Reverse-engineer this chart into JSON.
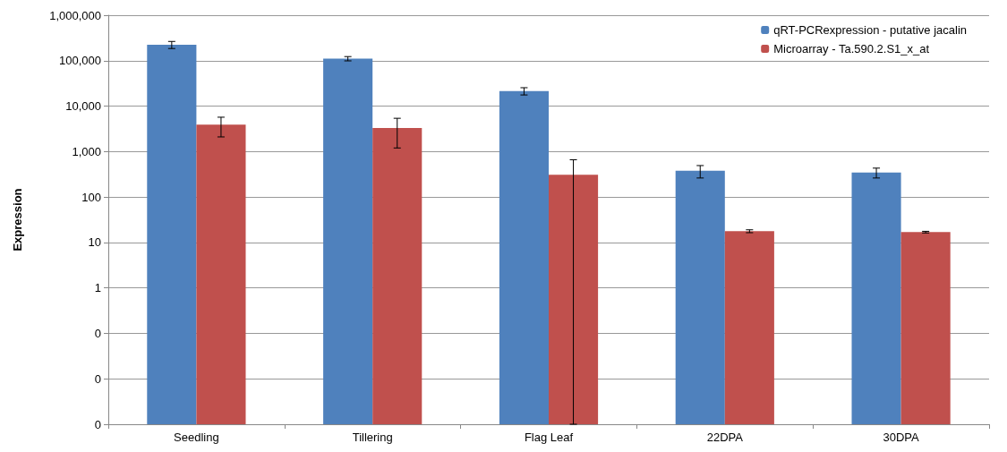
{
  "chart_data": {
    "type": "bar",
    "ylabel": "Expression",
    "categories": [
      "Seedling",
      "Tillering",
      "Flag Leaf",
      "22DPA",
      "30DPA"
    ],
    "series": [
      {
        "name": "qRT-PCRexpression - putative jacalin",
        "color": "#4f81bd",
        "values": [
          225000,
          111000,
          21500,
          377,
          347
        ],
        "errors": [
          40000,
          12000,
          3900,
          115,
          85
        ]
      },
      {
        "name": "Microarray - Ta.590.2.S1_x_at",
        "color": "#c0504d",
        "values": [
          3900,
          3300,
          310,
          17.7,
          16.9
        ],
        "errors": [
          1800,
          2100,
          [
            0.001,
            660
          ],
          1.3,
          0.7
        ]
      }
    ],
    "log": true,
    "ylim": [
      0.001,
      1000000
    ],
    "yticks": [
      {
        "value": 0.001,
        "label": "0"
      },
      {
        "value": 0.01,
        "label": "0"
      },
      {
        "value": 0.1,
        "label": "0"
      },
      1,
      10,
      100,
      {
        "value": 1000,
        "label": "1,000"
      },
      {
        "value": 10000,
        "label": "10,000"
      },
      {
        "value": 100000,
        "label": "100,000"
      },
      {
        "value": 1000000,
        "label": "1,000,000"
      }
    ],
    "grid": "y",
    "legend": "top right"
  }
}
